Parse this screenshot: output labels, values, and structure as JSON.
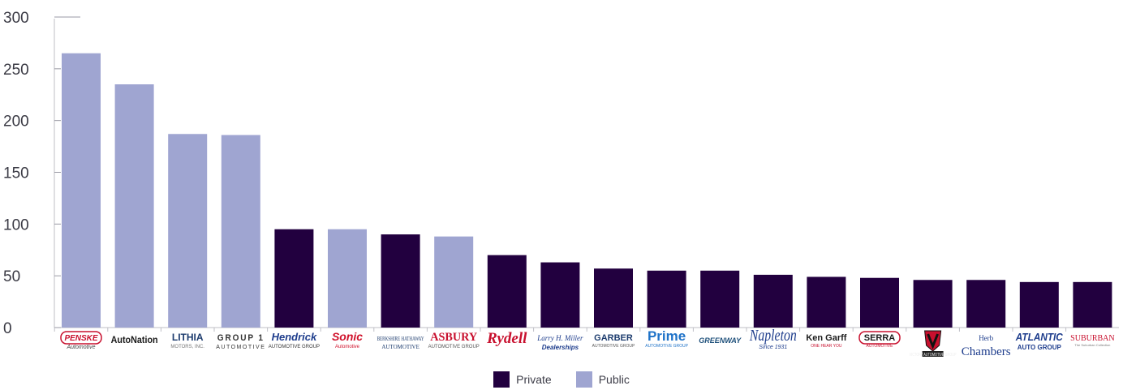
{
  "chart_data": {
    "type": "bar",
    "categories": [
      "Penske Automotive",
      "AutoNation",
      "Lithia Motors",
      "Group 1 Automotive",
      "Hendrick Automotive Group",
      "Sonic Automotive",
      "Berkshire Hathaway Automotive",
      "Asbury Automotive Group",
      "Rydell",
      "Larry H. Miller Dealerships",
      "Garber Automotive Group",
      "Prime Automotive Group",
      "Greenway",
      "Napleton",
      "Ken Garff",
      "Serra Automotive",
      "Victory Automotive Group",
      "Herb Chambers",
      "Atlantic Auto Group",
      "Suburban"
    ],
    "values": [
      265,
      235,
      187,
      186,
      95,
      95,
      90,
      88,
      70,
      63,
      57,
      55,
      55,
      51,
      49,
      48,
      46,
      46,
      44,
      44
    ],
    "ownership": [
      "Public",
      "Public",
      "Public",
      "Public",
      "Private",
      "Public",
      "Private",
      "Public",
      "Private",
      "Private",
      "Private",
      "Private",
      "Private",
      "Private",
      "Private",
      "Private",
      "Private",
      "Private",
      "Private",
      "Private"
    ],
    "ylim": [
      0,
      300
    ],
    "yticks": [
      0,
      50,
      100,
      150,
      200,
      250,
      300
    ],
    "grid": false,
    "legend_position": "bottom-center",
    "series": [
      {
        "name": "Private",
        "color": "#22003f"
      },
      {
        "name": "Public",
        "color": "#9fa5d1"
      }
    ],
    "logos": [
      {
        "text": "PENSKE",
        "sub": "Automotive",
        "icon": "penske-logo"
      },
      {
        "text": "AutoNation",
        "icon": "autonation-logo"
      },
      {
        "text": "LITHIA",
        "sub": "MOTORS, INC.",
        "icon": "lithia-logo"
      },
      {
        "text": "GROUP 1",
        "sub": "AUTOMOTIVE",
        "icon": "group1-logo"
      },
      {
        "text": "Hendrick",
        "sub": "AUTOMOTIVE GROUP",
        "icon": "hendrick-logo"
      },
      {
        "text": "Sonic",
        "sub": "Automotive",
        "icon": "sonic-logo"
      },
      {
        "text": "BERKSHIRE HATHAWAY",
        "sub": "AUTOMOTIVE",
        "icon": "berkshire-logo"
      },
      {
        "text": "ASBURY",
        "sub": "AUTOMOTIVE GROUP",
        "icon": "asbury-logo"
      },
      {
        "text": "Rydell",
        "icon": "rydell-logo"
      },
      {
        "text": "Larry H. Miller",
        "sub": "Dealerships",
        "icon": "lhm-logo"
      },
      {
        "text": "GARBER",
        "sub": "AUTOMOTIVE GROUP",
        "icon": "garber-logo"
      },
      {
        "text": "Prime",
        "sub": "AUTOMOTIVE GROUP",
        "icon": "prime-logo"
      },
      {
        "text": "GREENWAY",
        "icon": "greenway-logo"
      },
      {
        "text": "Napleton",
        "sub": "Since 1931",
        "icon": "napleton-logo"
      },
      {
        "text": "Ken Garff",
        "sub": "ONE HEAR YOU",
        "icon": "kengarff-logo"
      },
      {
        "text": "SERRA",
        "sub": "AUTOMOTIVE",
        "icon": "serra-logo"
      },
      {
        "text": "VICTORY AUTOMOTIVE GROUP",
        "icon": "victory-logo"
      },
      {
        "text": "Herb",
        "sub": "Chambers",
        "icon": "herbchambers-logo"
      },
      {
        "text": "ATLANTIC",
        "sub": "AUTO GROUP",
        "icon": "atlantic-logo"
      },
      {
        "text": "SUBURBAN",
        "sub": "The Suburban Collection",
        "icon": "suburban-logo"
      }
    ]
  }
}
